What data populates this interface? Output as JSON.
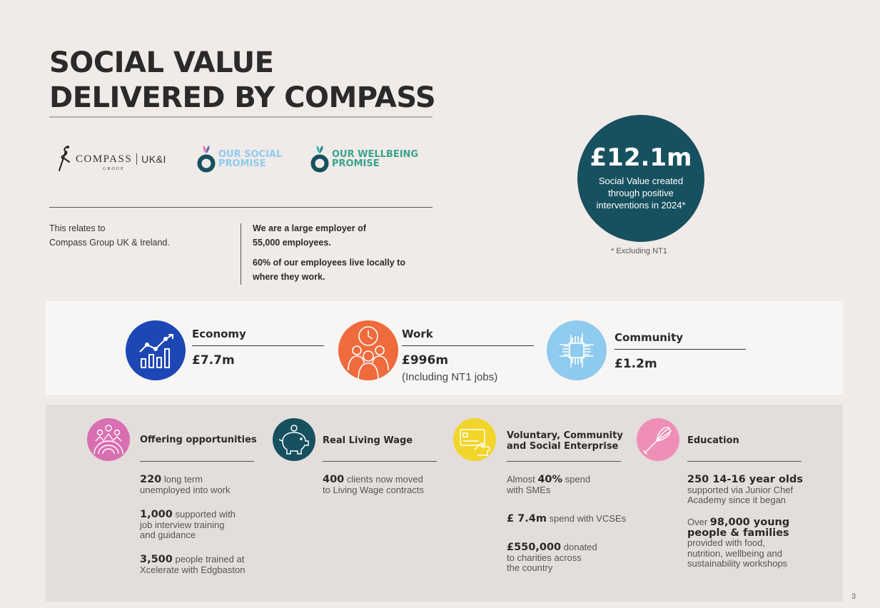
{
  "header": {
    "title_line1": "SOCIAL VALUE",
    "title_line2": "DELIVERED BY COMPASS"
  },
  "logos": {
    "compass_word": "COMPASS",
    "compass_group": "GROUP",
    "compass_region": "UK&I",
    "social_line1": "OUR SOCIAL",
    "social_line2": "PROMISE",
    "wellbeing_line1": "OUR WELLBEING",
    "wellbeing_line2": "PROMISE"
  },
  "intro": {
    "relates_line1": "This relates to",
    "relates_line2": "Compass Group UK & Ireland.",
    "employer_line1": "We are a large employer of",
    "employer_line2": "55,000 employees.",
    "local_line1": "60% of our employees live locally to",
    "local_line2": "where they work."
  },
  "headline": {
    "value": "£12.1m",
    "desc_line1": "Social Value created",
    "desc_line2": "through positive",
    "desc_line3": "interventions in 2024*",
    "footnote": "*   Excluding NT1"
  },
  "stats": [
    {
      "label": "Economy",
      "value": "£7.7m",
      "note": ""
    },
    {
      "label": "Work",
      "value": "£996m",
      "note": "(Including NT1 jobs)"
    },
    {
      "label": "Community",
      "value": "£1.2m",
      "note": ""
    }
  ],
  "details": {
    "opportunities": {
      "label": "Offering opportunities",
      "items": [
        {
          "num": "220",
          "rest": " long term",
          "line2": "unemployed into work",
          "line3": ""
        },
        {
          "num": "1,000",
          "rest": " supported with",
          "line2": "job interview training",
          "line3": "and guidance"
        },
        {
          "num": "3,500",
          "rest": " people trained at",
          "line2": "Xcelerate with Edgbaston",
          "line3": ""
        }
      ]
    },
    "wage": {
      "label": "Real Living Wage",
      "items": [
        {
          "num": "400",
          "rest": " clients now moved",
          "line2": "to Living Wage contracts"
        }
      ]
    },
    "voluntary": {
      "label_line1": "Voluntary, Community",
      "label_line2": "and Social Enterprise",
      "items": [
        {
          "pre": "Almost ",
          "num": "40%",
          "rest": " spend",
          "line2": "with SMEs",
          "line3": ""
        },
        {
          "pre": "",
          "num": "£ 7.4m",
          "rest": " spend with VCSEs",
          "line2": "",
          "line3": ""
        },
        {
          "pre": "",
          "num": "£550,000",
          "rest": " donated",
          "line2": "to charities across",
          "line3": "the country"
        }
      ]
    },
    "education": {
      "label": "Education",
      "items": [
        {
          "pre": "",
          "num": "250 14-16 year olds",
          "num2": "",
          "line2": "supported via Junior Chef",
          "line3": "Academy since it began",
          "line4": ""
        },
        {
          "pre": "Over ",
          "num": "98,000 young",
          "num2": "people & families",
          "line2": "provided with food,",
          "line3": "nutrition, wellbeing and",
          "line4": "sustainability workshops"
        }
      ]
    }
  },
  "page_number": "3",
  "colors": {
    "teal": "#17505f",
    "economy": "#1e47b6",
    "work": "#ef6a3d",
    "community": "#8fcaef",
    "opportunities": "#d86fb2",
    "wage": "#17505f",
    "voluntary": "#f2d52a",
    "education": "#ef8fb8"
  }
}
